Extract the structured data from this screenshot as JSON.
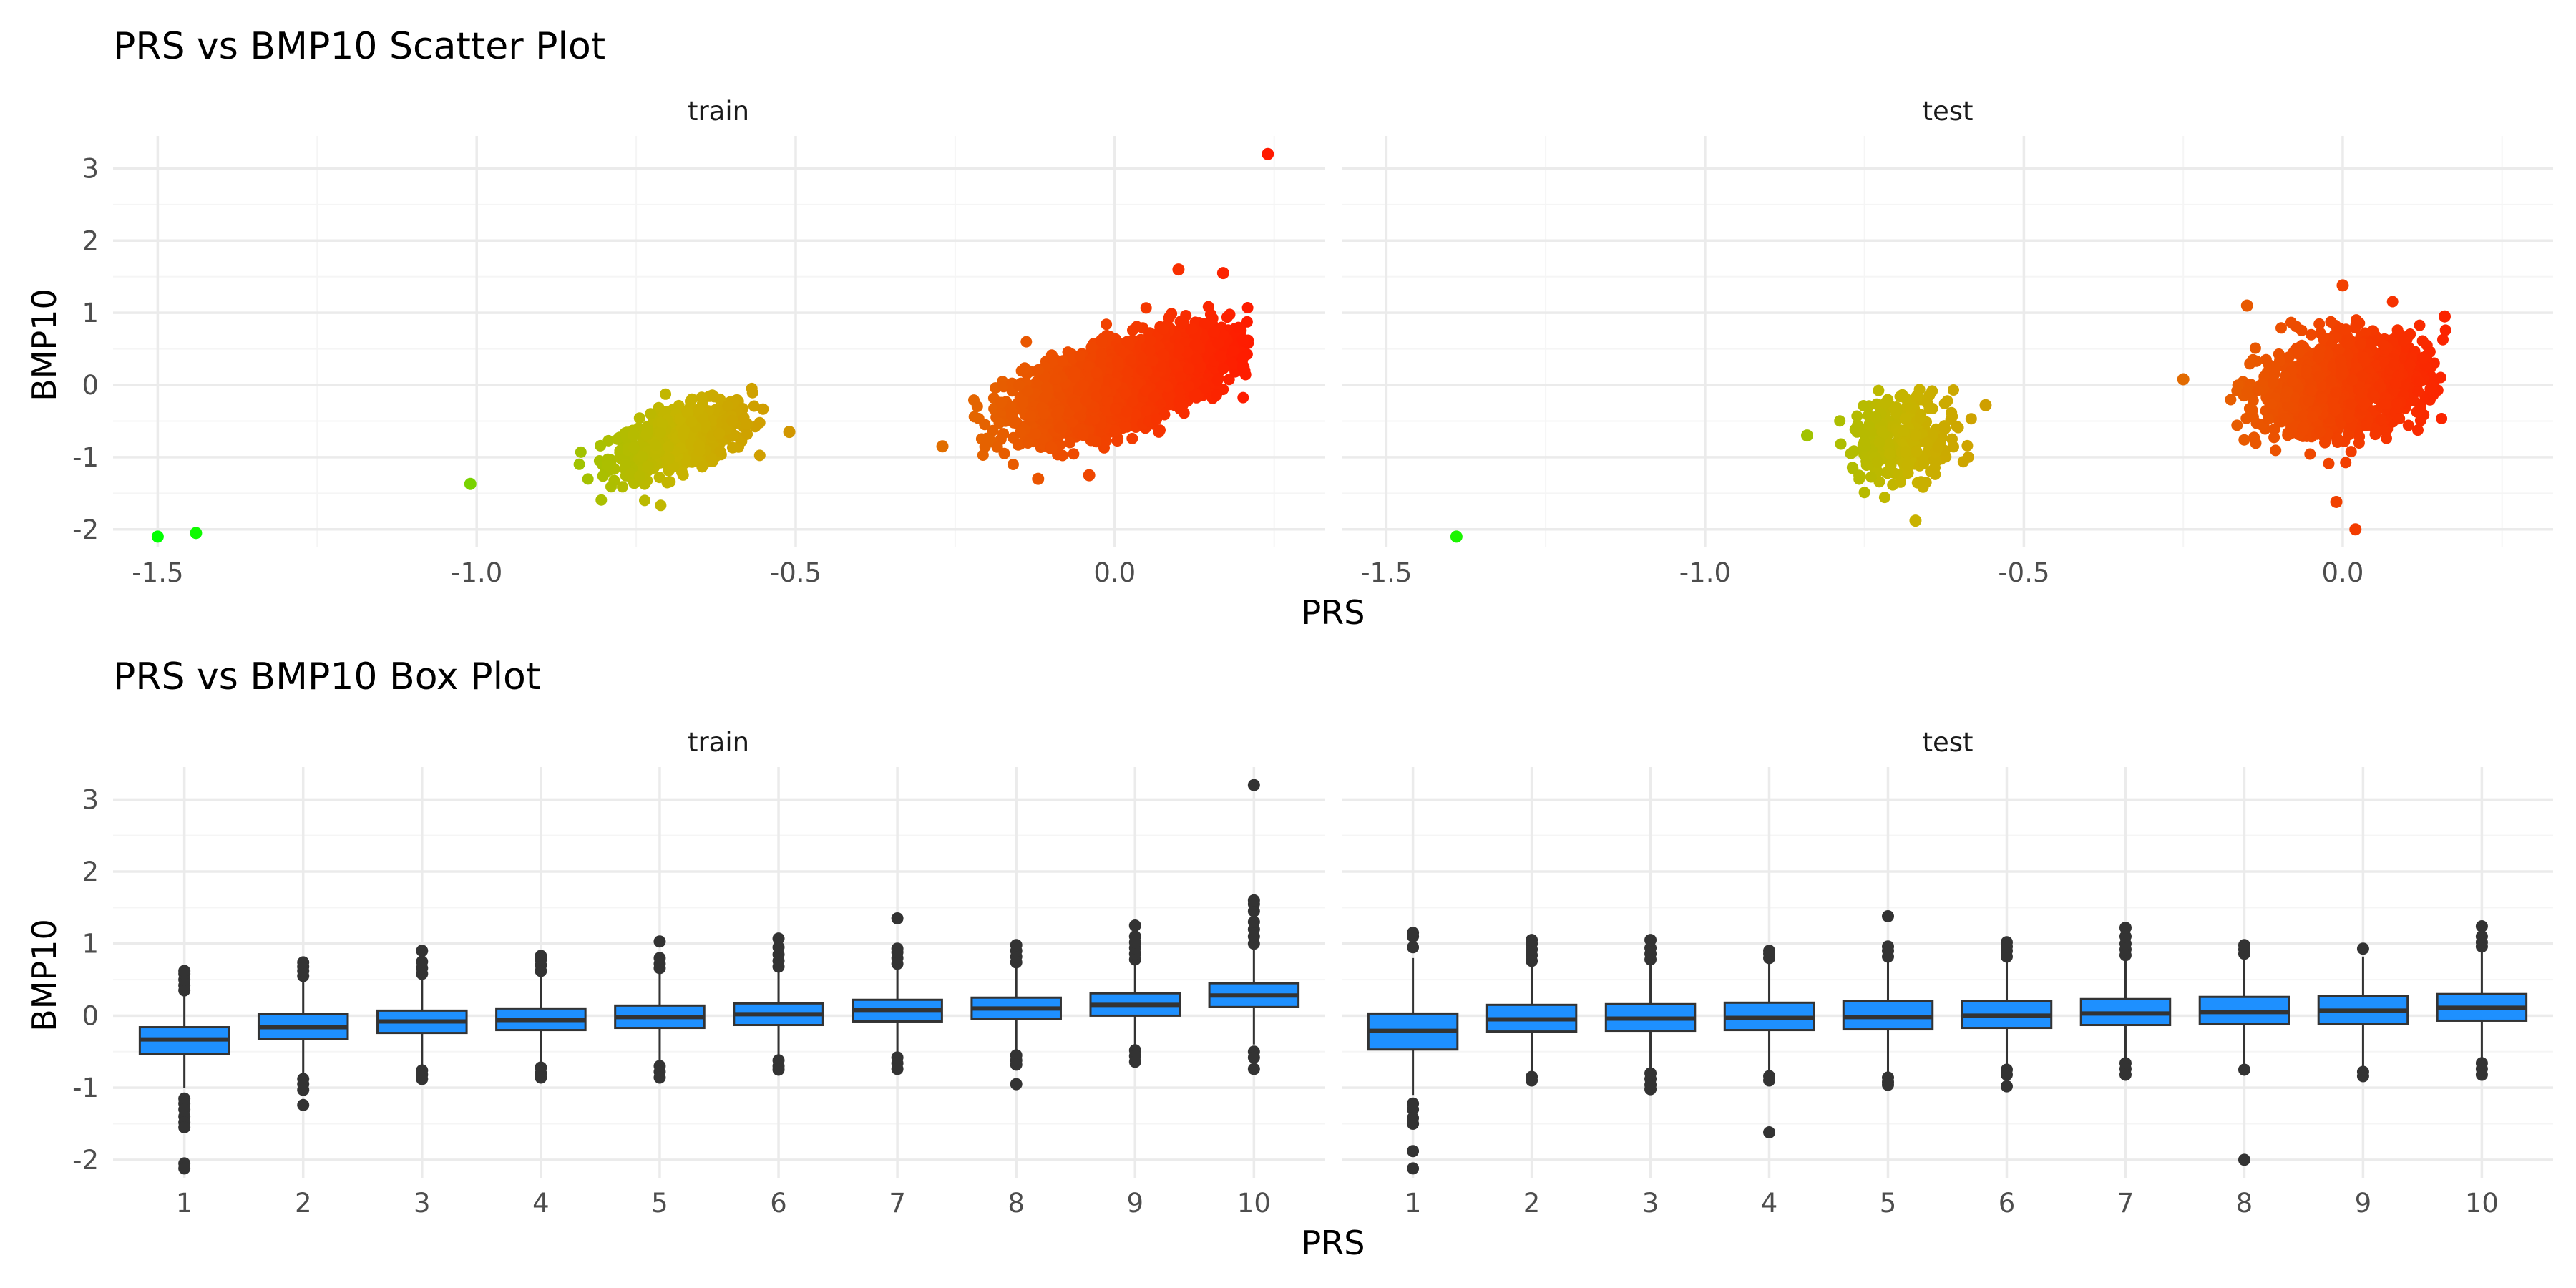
{
  "chart_data": [
    {
      "type": "scatter",
      "title": "PRS vs BMP10 Scatter Plot",
      "xlabel": "PRS",
      "ylabel": "BMP10",
      "xlim": [
        -1.57,
        0.33
      ],
      "ylim": [
        -2.25,
        3.45
      ],
      "x_ticks": [
        -1.5,
        -1.0,
        -0.5,
        0.0
      ],
      "x_tick_labels": [
        "-1.5",
        "-1.0",
        "-0.5",
        "0.0"
      ],
      "y_ticks": [
        -2,
        -1,
        0,
        1,
        2,
        3
      ],
      "y_tick_labels": [
        "-2",
        "-1",
        "0",
        "1",
        "2",
        "3"
      ],
      "grid": true,
      "color_scale": {
        "low": "#00ff00",
        "mid": "#c8b400",
        "high": "#ff1a00",
        "note": "points coloured by PRS value"
      },
      "panels": [
        {
          "label": "train",
          "outliers": [
            {
              "x": -1.5,
              "y": -2.1
            },
            {
              "x": -1.44,
              "y": -2.05
            },
            {
              "x": -1.01,
              "y": -1.37
            },
            {
              "x": -0.51,
              "y": -0.65
            },
            {
              "x": -0.27,
              "y": -0.85
            },
            {
              "x": 0.24,
              "y": 3.2
            },
            {
              "x": 0.1,
              "y": 1.6
            },
            {
              "x": 0.17,
              "y": 1.55
            },
            {
              "x": -0.04,
              "y": -1.25
            },
            {
              "x": -0.12,
              "y": -1.3
            }
          ],
          "clusters": [
            {
              "cx": -0.68,
              "cy": -0.75,
              "sx": 0.055,
              "sy": 0.25,
              "rho": 0.55,
              "n": 600,
              "xmin": -0.86,
              "xmax": -0.55
            },
            {
              "cx": 0.02,
              "cy": 0.05,
              "sx": 0.08,
              "sy": 0.33,
              "rho": 0.6,
              "n": 3000,
              "xmin": -0.24,
              "xmax": 0.21
            }
          ]
        },
        {
          "label": "test",
          "outliers": [
            {
              "x": -1.39,
              "y": -2.1
            },
            {
              "x": -0.67,
              "y": -1.88
            },
            {
              "x": -0.25,
              "y": 0.08
            },
            {
              "x": -0.01,
              "y": -1.62
            },
            {
              "x": 0.02,
              "y": -2.0
            },
            {
              "x": -0.84,
              "y": -0.7
            },
            {
              "x": -0.56,
              "y": -0.28
            },
            {
              "x": 0.0,
              "y": 1.38
            },
            {
              "x": -0.15,
              "y": 1.1
            },
            {
              "x": 0.16,
              "y": 0.95
            }
          ],
          "clusters": [
            {
              "cx": -0.69,
              "cy": -0.72,
              "sx": 0.045,
              "sy": 0.3,
              "rho": 0.2,
              "n": 250,
              "xmin": -0.8,
              "xmax": -0.58
            },
            {
              "cx": 0.0,
              "cy": 0.0,
              "sx": 0.065,
              "sy": 0.33,
              "rho": 0.25,
              "n": 1300,
              "xmin": -0.19,
              "xmax": 0.17
            }
          ]
        }
      ]
    },
    {
      "type": "box",
      "title": "PRS vs BMP10 Box Plot",
      "xlabel": "PRS",
      "ylabel": "BMP10",
      "categories": [
        "1",
        "2",
        "3",
        "4",
        "5",
        "6",
        "7",
        "8",
        "9",
        "10"
      ],
      "ylim": [
        -2.25,
        3.45
      ],
      "y_ticks": [
        -2,
        -1,
        0,
        1,
        2,
        3
      ],
      "y_tick_labels": [
        "-2",
        "-1",
        "0",
        "1",
        "2",
        "3"
      ],
      "grid": true,
      "box_color": "#1e90ff",
      "panels": [
        {
          "label": "train",
          "boxes": [
            {
              "q1": -0.53,
              "median": -0.33,
              "q3": -0.16,
              "whisker_low": -1.0,
              "whisker_high": 0.3,
              "outliers": [
                0.35,
                0.42,
                0.5,
                0.58,
                0.62,
                -1.15,
                -1.22,
                -1.3,
                -1.4,
                -1.48,
                -1.55,
                -2.05,
                -2.12
              ]
            },
            {
              "q1": -0.32,
              "median": -0.16,
              "q3": 0.02,
              "whisker_low": -0.8,
              "whisker_high": 0.5,
              "outliers": [
                0.55,
                0.62,
                0.68,
                0.74,
                -0.88,
                -0.95,
                -1.03,
                -1.24
              ]
            },
            {
              "q1": -0.24,
              "median": -0.08,
              "q3": 0.07,
              "whisker_low": -0.7,
              "whisker_high": 0.52,
              "outliers": [
                0.58,
                0.66,
                0.75,
                0.9,
                -0.76,
                -0.82,
                -0.88
              ]
            },
            {
              "q1": -0.2,
              "median": -0.06,
              "q3": 0.1,
              "whisker_low": -0.65,
              "whisker_high": 0.55,
              "outliers": [
                0.62,
                0.7,
                0.78,
                0.83,
                -0.72,
                -0.8,
                -0.86
              ]
            },
            {
              "q1": -0.17,
              "median": -0.02,
              "q3": 0.14,
              "whisker_low": -0.65,
              "whisker_high": 0.6,
              "outliers": [
                0.66,
                0.72,
                0.8,
                1.03,
                -0.7,
                -0.78,
                -0.86
              ]
            },
            {
              "q1": -0.13,
              "median": 0.02,
              "q3": 0.17,
              "whisker_low": -0.55,
              "whisker_high": 0.62,
              "outliers": [
                0.68,
                0.76,
                0.85,
                0.95,
                1.07,
                -0.62,
                -0.7,
                -0.75
              ]
            },
            {
              "q1": -0.08,
              "median": 0.08,
              "q3": 0.22,
              "whisker_low": -0.52,
              "whisker_high": 0.65,
              "outliers": [
                0.72,
                0.8,
                0.88,
                0.93,
                1.35,
                -0.58,
                -0.66,
                -0.74
              ]
            },
            {
              "q1": -0.05,
              "median": 0.1,
              "q3": 0.25,
              "whisker_low": -0.5,
              "whisker_high": 0.68,
              "outliers": [
                0.74,
                0.82,
                0.9,
                0.98,
                -0.55,
                -0.62,
                -0.68,
                -0.95
              ]
            },
            {
              "q1": 0.0,
              "median": 0.15,
              "q3": 0.31,
              "whisker_low": -0.45,
              "whisker_high": 0.72,
              "outliers": [
                0.78,
                0.86,
                0.94,
                1.02,
                1.1,
                1.25,
                -0.48,
                -0.56,
                -0.64
              ]
            },
            {
              "q1": 0.12,
              "median": 0.28,
              "q3": 0.45,
              "whisker_low": -0.4,
              "whisker_high": 0.92,
              "outliers": [
                1.0,
                1.1,
                1.2,
                1.3,
                1.45,
                1.55,
                1.6,
                3.2,
                -0.5,
                -0.58,
                -0.74
              ]
            }
          ]
        },
        {
          "label": "test",
          "boxes": [
            {
              "q1": -0.47,
              "median": -0.21,
              "q3": 0.03,
              "whisker_low": -1.1,
              "whisker_high": 0.8,
              "outliers": [
                0.95,
                1.1,
                1.15,
                -1.22,
                -1.3,
                -1.42,
                -1.5,
                -1.88,
                -2.12
              ]
            },
            {
              "q1": -0.22,
              "median": -0.05,
              "q3": 0.15,
              "whisker_low": -0.8,
              "whisker_high": 0.7,
              "outliers": [
                0.76,
                0.84,
                0.92,
                1.0,
                1.05,
                -0.85,
                -0.9
              ]
            },
            {
              "q1": -0.21,
              "median": -0.04,
              "q3": 0.16,
              "whisker_low": -0.75,
              "whisker_high": 0.72,
              "outliers": [
                0.78,
                0.86,
                0.94,
                1.05,
                -0.8,
                -0.88,
                -0.96,
                -1.02
              ]
            },
            {
              "q1": -0.2,
              "median": -0.03,
              "q3": 0.18,
              "whisker_low": -0.78,
              "whisker_high": 0.74,
              "outliers": [
                0.8,
                0.86,
                0.9,
                -0.84,
                -0.9,
                -1.62
              ]
            },
            {
              "q1": -0.19,
              "median": -0.02,
              "q3": 0.2,
              "whisker_low": -0.8,
              "whisker_high": 0.75,
              "outliers": [
                0.82,
                0.9,
                0.96,
                1.38,
                -0.86,
                -0.92,
                -0.96
              ]
            },
            {
              "q1": -0.17,
              "median": 0.0,
              "q3": 0.2,
              "whisker_low": -0.7,
              "whisker_high": 0.76,
              "outliers": [
                0.82,
                0.9,
                0.96,
                1.02,
                -0.75,
                -0.82,
                -0.98
              ]
            },
            {
              "q1": -0.13,
              "median": 0.03,
              "q3": 0.23,
              "whisker_low": -0.6,
              "whisker_high": 0.78,
              "outliers": [
                0.84,
                0.92,
                1.0,
                1.1,
                1.22,
                -0.66,
                -0.74,
                -0.82
              ]
            },
            {
              "q1": -0.12,
              "median": 0.05,
              "q3": 0.26,
              "whisker_low": -0.7,
              "whisker_high": 0.8,
              "outliers": [
                0.86,
                0.92,
                0.98,
                -0.75,
                -2.0
              ]
            },
            {
              "q1": -0.11,
              "median": 0.07,
              "q3": 0.27,
              "whisker_low": -0.72,
              "whisker_high": 0.82,
              "outliers": [
                0.93,
                -0.78,
                -0.84
              ]
            },
            {
              "q1": -0.07,
              "median": 0.11,
              "q3": 0.3,
              "whisker_low": -0.6,
              "whisker_high": 0.88,
              "outliers": [
                0.96,
                1.02,
                1.1,
                1.24,
                -0.66,
                -0.74,
                -0.82
              ]
            }
          ]
        }
      ]
    }
  ]
}
